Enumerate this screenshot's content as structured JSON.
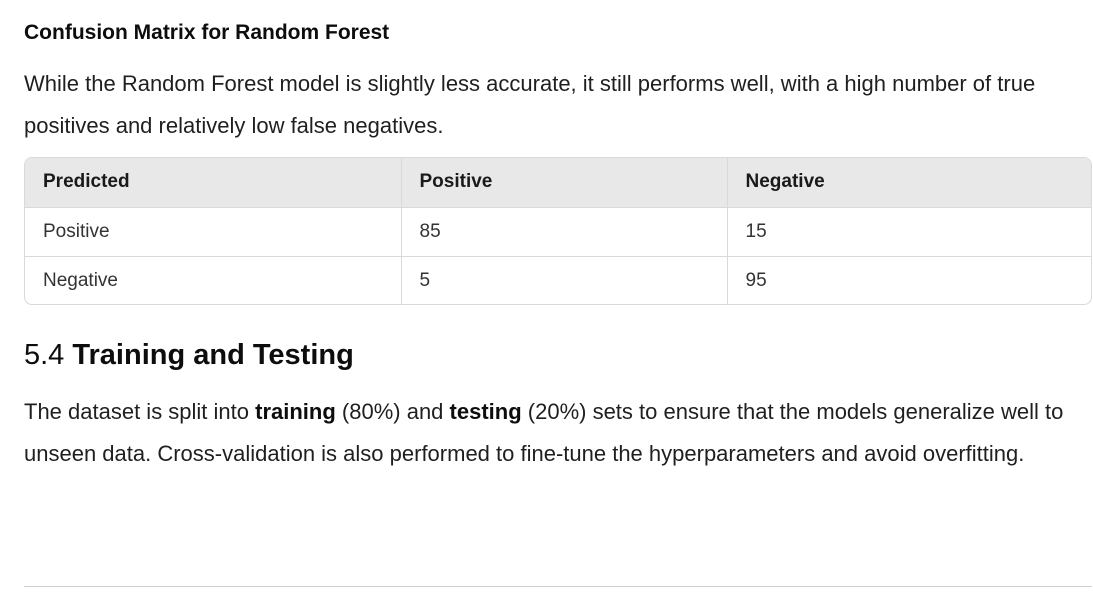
{
  "subheading": "Confusion Matrix for Random Forest",
  "intro_paragraph": "While the Random Forest model is slightly less accurate, it still performs well, with a high number of true positives and relatively low false negatives.",
  "table": {
    "headers": [
      "Predicted",
      "Positive",
      "Negative"
    ],
    "rows": [
      [
        "Positive",
        "85",
        "15"
      ],
      [
        "Negative",
        "5",
        "95"
      ]
    ]
  },
  "section": {
    "number": "5.4",
    "title": "Training and Testing"
  },
  "body_paragraph": {
    "part1": "The dataset is split into ",
    "bold1": "training",
    "part2": " (80%) and ",
    "bold2": "testing",
    "part3": " (20%) sets to ensure that the models generalize well to unseen data. Cross-validation is also performed to fine-tune the hyperparameters and avoid overfitting."
  }
}
